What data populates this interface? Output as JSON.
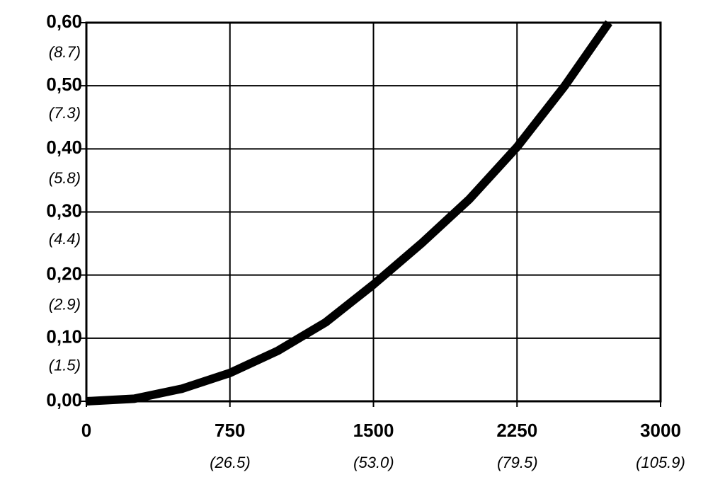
{
  "chart_data": {
    "type": "line",
    "x": [
      0,
      250,
      500,
      750,
      1000,
      1250,
      1500,
      1750,
      2000,
      2250,
      2500,
      2730
    ],
    "series": [
      {
        "color": "#000000",
        "values": [
          0,
          0.004,
          0.02,
          0.045,
          0.08,
          0.125,
          0.185,
          0.25,
          0.32,
          0.403,
          0.5,
          0.6
        ]
      }
    ],
    "xlim": [
      0,
      3000
    ],
    "xticks": [
      0,
      750,
      1500,
      2250,
      3000
    ],
    "x2lim": [
      0,
      105.9
    ],
    "x2ticks": [
      {
        "value": 26.5,
        "label": "(26.5)"
      },
      {
        "value": 53.0,
        "label": "(53.0)"
      },
      {
        "value": 79.5,
        "label": "(79.5)"
      },
      {
        "value": 105.9,
        "label": "(105.9)"
      }
    ],
    "ylim": [
      0,
      0.6
    ],
    "yticks": [
      {
        "value": 0,
        "label": "0,00"
      },
      {
        "value": 0.1,
        "label": "0,10"
      },
      {
        "value": 0.2,
        "label": "0,20"
      },
      {
        "value": 0.3,
        "label": "0,30"
      },
      {
        "value": 0.4,
        "label": "0,40"
      },
      {
        "value": 0.5,
        "label": "0,50"
      },
      {
        "value": 0.6,
        "label": "0,60"
      }
    ],
    "y2lim": [
      0,
      8.7
    ],
    "y2ticks": [
      {
        "value": 1.5,
        "label": "(1.5)"
      },
      {
        "value": 2.9,
        "label": "(2.9)"
      },
      {
        "value": 4.4,
        "label": "(4.4)"
      },
      {
        "value": 5.8,
        "label": "(5.8)"
      },
      {
        "value": 7.3,
        "label": "(7.3)"
      },
      {
        "value": 8.7,
        "label": "(8.7)"
      }
    ],
    "grid": true
  }
}
